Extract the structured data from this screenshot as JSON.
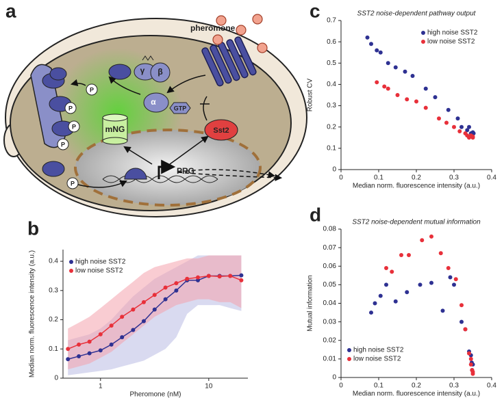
{
  "panel_labels": [
    "a",
    "b",
    "c",
    "d"
  ],
  "diagram": {
    "pheromone": "pheromone",
    "gamma": "γ",
    "beta": "β",
    "alpha": "α",
    "gtp": "GTP",
    "mng": "mNG",
    "sst2": "Sst2",
    "prg": "PRG",
    "phospho_labels": [
      "P",
      "P",
      "P",
      "P",
      "P"
    ]
  },
  "chart_data": [
    {
      "type": "line",
      "xlabel": "Pheromone (nM)",
      "ylabel": "Median norm. fluorescence intensity (a.u.)",
      "xscale": "log",
      "xlim": [
        0.45,
        23
      ],
      "xticks": [
        1,
        10
      ],
      "ylim": [
        0,
        0.44
      ],
      "yticks": [
        0,
        0.1,
        0.2,
        0.3,
        0.4
      ],
      "legend": "upper left",
      "x": [
        0.5,
        0.63,
        0.79,
        1.0,
        1.26,
        1.58,
        2.0,
        2.51,
        3.16,
        3.98,
        5.01,
        6.31,
        7.94,
        10,
        12.6,
        15.8,
        20
      ],
      "series": [
        {
          "name": "high noise SST2",
          "color": "#2e3192",
          "band_color": "#b9bbe3",
          "values": [
            0.065,
            0.075,
            0.085,
            0.095,
            0.115,
            0.14,
            0.165,
            0.195,
            0.235,
            0.27,
            0.3,
            0.335,
            0.335,
            0.35,
            0.35,
            0.35,
            0.352
          ],
          "band_lower": [
            0.01,
            0.015,
            0.02,
            0.025,
            0.03,
            0.04,
            0.05,
            0.06,
            0.08,
            0.1,
            0.14,
            0.22,
            0.25,
            0.25,
            0.25,
            0.24,
            0.23
          ],
          "band_upper": [
            0.13,
            0.14,
            0.15,
            0.17,
            0.2,
            0.24,
            0.28,
            0.31,
            0.34,
            0.36,
            0.38,
            0.4,
            0.42,
            0.42,
            0.42,
            0.42,
            0.42
          ]
        },
        {
          "name": "low noise SST2",
          "color": "#e8303a",
          "band_color": "#f4a3ad",
          "values": [
            0.1,
            0.115,
            0.125,
            0.15,
            0.18,
            0.21,
            0.235,
            0.26,
            0.285,
            0.31,
            0.325,
            0.34,
            0.345,
            0.35,
            0.348,
            0.35,
            0.335
          ],
          "band_lower": [
            0.03,
            0.04,
            0.05,
            0.07,
            0.09,
            0.12,
            0.15,
            0.18,
            0.21,
            0.23,
            0.25,
            0.26,
            0.27,
            0.27,
            0.26,
            0.26,
            0.24
          ],
          "band_upper": [
            0.17,
            0.19,
            0.21,
            0.24,
            0.27,
            0.3,
            0.33,
            0.36,
            0.38,
            0.39,
            0.4,
            0.41,
            0.41,
            0.42,
            0.42,
            0.42,
            0.42
          ]
        }
      ]
    },
    {
      "type": "scatter",
      "title": "SST2 noise-dependent pathway output",
      "xlabel": "Median norm. fluorescence intensity (a.u.)",
      "ylabel": "Robust CV",
      "xlim": [
        0,
        0.4
      ],
      "xticks": [
        0,
        0.1,
        0.2,
        0.3,
        0.4
      ],
      "ylim": [
        0,
        0.7
      ],
      "yticks": [
        0,
        0.1,
        0.2,
        0.3,
        0.4,
        0.5,
        0.6,
        0.7
      ],
      "legend": "upper right",
      "series": [
        {
          "name": "high noise SST2",
          "color": "#2e3192",
          "x": [
            0.07,
            0.08,
            0.095,
            0.105,
            0.125,
            0.145,
            0.17,
            0.19,
            0.225,
            0.25,
            0.285,
            0.31,
            0.32,
            0.335,
            0.34,
            0.345,
            0.35,
            0.352
          ],
          "values": [
            0.62,
            0.59,
            0.56,
            0.55,
            0.5,
            0.48,
            0.46,
            0.44,
            0.38,
            0.34,
            0.28,
            0.24,
            0.2,
            0.185,
            0.2,
            0.17,
            0.175,
            0.17
          ]
        },
        {
          "name": "low noise SST2",
          "color": "#e8303a",
          "x": [
            0.095,
            0.115,
            0.125,
            0.15,
            0.175,
            0.2,
            0.225,
            0.26,
            0.28,
            0.3,
            0.315,
            0.33,
            0.335,
            0.34,
            0.345,
            0.35,
            0.35
          ],
          "values": [
            0.41,
            0.39,
            0.38,
            0.35,
            0.33,
            0.32,
            0.29,
            0.24,
            0.22,
            0.2,
            0.18,
            0.17,
            0.16,
            0.15,
            0.16,
            0.15,
            0.155
          ]
        }
      ]
    },
    {
      "type": "scatter",
      "title": "SST2 noise-dependent mutual information",
      "xlabel": "Median norm. fluorescence intensity (a.u.)",
      "ylabel": "Mutual information",
      "xlim": [
        0,
        0.4
      ],
      "xticks": [
        0,
        0.1,
        0.2,
        0.3,
        0.4
      ],
      "ylim": [
        0,
        0.08
      ],
      "yticks": [
        0,
        0.01,
        0.02,
        0.03,
        0.04,
        0.05,
        0.06,
        0.07,
        0.08
      ],
      "legend": "lower left",
      "series": [
        {
          "name": "high noise SST2",
          "color": "#2e3192",
          "x": [
            0.08,
            0.09,
            0.105,
            0.12,
            0.145,
            0.175,
            0.21,
            0.24,
            0.27,
            0.29,
            0.3,
            0.32,
            0.33,
            0.34,
            0.345,
            0.347,
            0.35,
            0.348
          ],
          "values": [
            0.035,
            0.04,
            0.044,
            0.05,
            0.041,
            0.046,
            0.05,
            0.051,
            0.036,
            0.054,
            0.05,
            0.03,
            0.026,
            0.014,
            0.012,
            0.008,
            0.007,
            0.004
          ]
        },
        {
          "name": "low noise SST2",
          "color": "#e8303a",
          "x": [
            0.12,
            0.135,
            0.16,
            0.18,
            0.215,
            0.24,
            0.265,
            0.285,
            0.305,
            0.32,
            0.33,
            0.34,
            0.345,
            0.345,
            0.348,
            0.35,
            0.35
          ],
          "values": [
            0.059,
            0.057,
            0.066,
            0.066,
            0.074,
            0.076,
            0.067,
            0.059,
            0.053,
            0.039,
            0.026,
            0.013,
            0.01,
            0.007,
            0.004,
            0.003,
            0.002
          ]
        }
      ]
    }
  ]
}
